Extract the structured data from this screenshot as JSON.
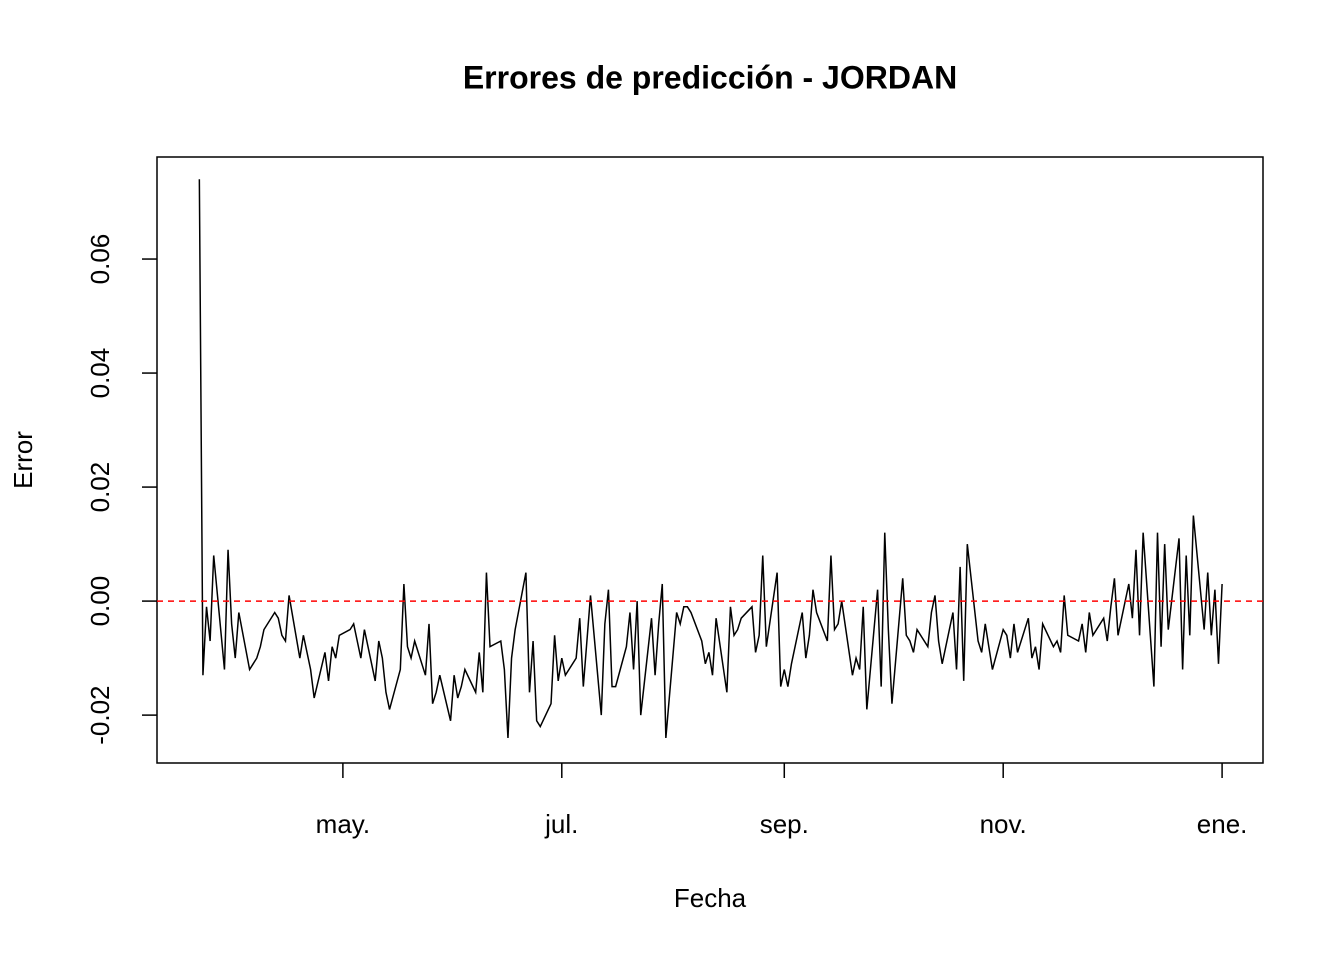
{
  "chart_data": {
    "type": "line",
    "title": "Errores de predicción - JORDAN",
    "xlabel": "Fecha",
    "ylabel": "Error",
    "x": [
      -40,
      -39,
      -38,
      -37,
      -36,
      -33,
      -32,
      -31,
      -30,
      -29,
      -26,
      -25,
      -24,
      -23,
      -22,
      -19,
      -18,
      -17,
      -16,
      -15,
      -12,
      -11,
      -10,
      -9,
      -8,
      -5,
      -4,
      -3,
      -2,
      -1,
      2,
      3,
      4,
      5,
      6,
      9,
      10,
      11,
      12,
      13,
      16,
      17,
      18,
      19,
      20,
      23,
      24,
      25,
      26,
      27,
      30,
      31,
      32,
      33,
      34,
      37,
      38,
      39,
      40,
      41,
      44,
      45,
      46,
      47,
      48,
      51,
      52,
      53,
      54,
      55,
      58,
      59,
      60,
      61,
      62,
      65,
      66,
      67,
      68,
      69,
      72,
      73,
      74,
      75,
      76,
      79,
      80,
      81,
      82,
      83,
      86,
      87,
      88,
      89,
      90,
      93,
      94,
      95,
      96,
      97,
      100,
      101,
      102,
      103,
      104,
      107,
      108,
      109,
      110,
      111,
      114,
      115,
      116,
      117,
      118,
      121,
      122,
      123,
      124,
      125,
      128,
      129,
      130,
      131,
      132,
      135,
      136,
      137,
      138,
      139,
      142,
      143,
      144,
      145,
      146,
      149,
      150,
      151,
      152,
      153,
      156,
      157,
      158,
      159,
      160,
      163,
      164,
      165,
      166,
      167,
      170,
      171,
      172,
      173,
      174,
      177,
      178,
      179,
      180,
      181,
      184,
      185,
      186,
      187,
      188,
      191,
      192,
      193,
      194,
      195,
      198,
      199,
      200,
      201,
      202,
      205,
      206,
      207,
      208,
      209,
      212,
      213,
      214,
      215,
      216,
      219,
      220,
      221,
      222,
      223,
      226,
      227,
      228,
      229,
      230,
      233,
      234,
      235,
      236,
      237,
      240,
      241,
      242,
      243,
      244,
      245
    ],
    "values": [
      0.074,
      -0.013,
      -0.001,
      -0.007,
      0.008,
      -0.012,
      0.009,
      -0.004,
      -0.01,
      -0.002,
      -0.012,
      -0.011,
      -0.01,
      -0.008,
      -0.005,
      -0.002,
      -0.003,
      -0.006,
      -0.007,
      0.001,
      -0.01,
      -0.006,
      -0.009,
      -0.012,
      -0.017,
      -0.009,
      -0.014,
      -0.008,
      -0.01,
      -0.006,
      -0.005,
      -0.004,
      -0.007,
      -0.01,
      -0.005,
      -0.014,
      -0.007,
      -0.01,
      -0.016,
      -0.019,
      -0.012,
      0.003,
      -0.008,
      -0.01,
      -0.007,
      -0.013,
      -0.004,
      -0.018,
      -0.016,
      -0.013,
      -0.021,
      -0.013,
      -0.017,
      -0.015,
      -0.012,
      -0.016,
      -0.009,
      -0.016,
      0.005,
      -0.008,
      -0.007,
      -0.012,
      -0.024,
      -0.01,
      -0.005,
      0.005,
      -0.016,
      -0.007,
      -0.021,
      -0.022,
      -0.018,
      -0.006,
      -0.014,
      -0.01,
      -0.013,
      -0.01,
      -0.003,
      -0.015,
      -0.007,
      0.001,
      -0.02,
      -0.004,
      0.002,
      -0.015,
      -0.015,
      -0.008,
      -0.002,
      -0.012,
      0.0,
      -0.02,
      -0.003,
      -0.013,
      -0.004,
      0.003,
      -0.024,
      -0.002,
      -0.004,
      -0.001,
      -0.001,
      -0.002,
      -0.007,
      -0.011,
      -0.009,
      -0.013,
      -0.003,
      -0.016,
      -0.001,
      -0.006,
      -0.005,
      -0.003,
      -0.001,
      -0.009,
      -0.006,
      0.008,
      -0.008,
      0.005,
      -0.015,
      -0.012,
      -0.015,
      -0.011,
      -0.002,
      -0.01,
      -0.006,
      0.002,
      -0.002,
      -0.007,
      0.008,
      -0.005,
      -0.004,
      0.0,
      -0.013,
      -0.01,
      -0.012,
      -0.001,
      -0.019,
      0.002,
      -0.015,
      0.012,
      -0.005,
      -0.018,
      0.004,
      -0.006,
      -0.007,
      -0.009,
      -0.005,
      -0.008,
      -0.002,
      0.001,
      -0.007,
      -0.011,
      -0.002,
      -0.012,
      0.006,
      -0.014,
      0.01,
      -0.007,
      -0.009,
      -0.004,
      -0.008,
      -0.012,
      -0.005,
      -0.006,
      -0.01,
      -0.004,
      -0.009,
      -0.003,
      -0.01,
      -0.008,
      -0.012,
      -0.004,
      -0.008,
      -0.007,
      -0.009,
      0.001,
      -0.006,
      -0.007,
      -0.004,
      -0.009,
      -0.002,
      -0.006,
      -0.003,
      -0.007,
      -0.001,
      0.004,
      -0.006,
      0.003,
      -0.003,
      0.009,
      -0.006,
      0.012,
      -0.015,
      0.012,
      -0.008,
      0.01,
      -0.005,
      0.011,
      -0.012,
      0.008,
      -0.006,
      0.015,
      -0.005,
      0.005,
      -0.006,
      0.002,
      -0.011,
      0.003
    ],
    "color": "#000000",
    "hline": 0,
    "hline_color": "#ff0000",
    "xlim": [
      -51.8,
      256.4
    ],
    "xticks": [
      {
        "value": 0,
        "label": "may."
      },
      {
        "value": 61,
        "label": "jul."
      },
      {
        "value": 123,
        "label": "sep."
      },
      {
        "value": 184,
        "label": "nov."
      },
      {
        "value": 245,
        "label": "ene."
      }
    ],
    "ylim": [
      -0.0284,
      0.0779
    ],
    "yticks": [
      -0.02,
      {
        "value": 0,
        "label": "0.00"
      },
      0.02,
      0.04,
      0.06
    ]
  }
}
